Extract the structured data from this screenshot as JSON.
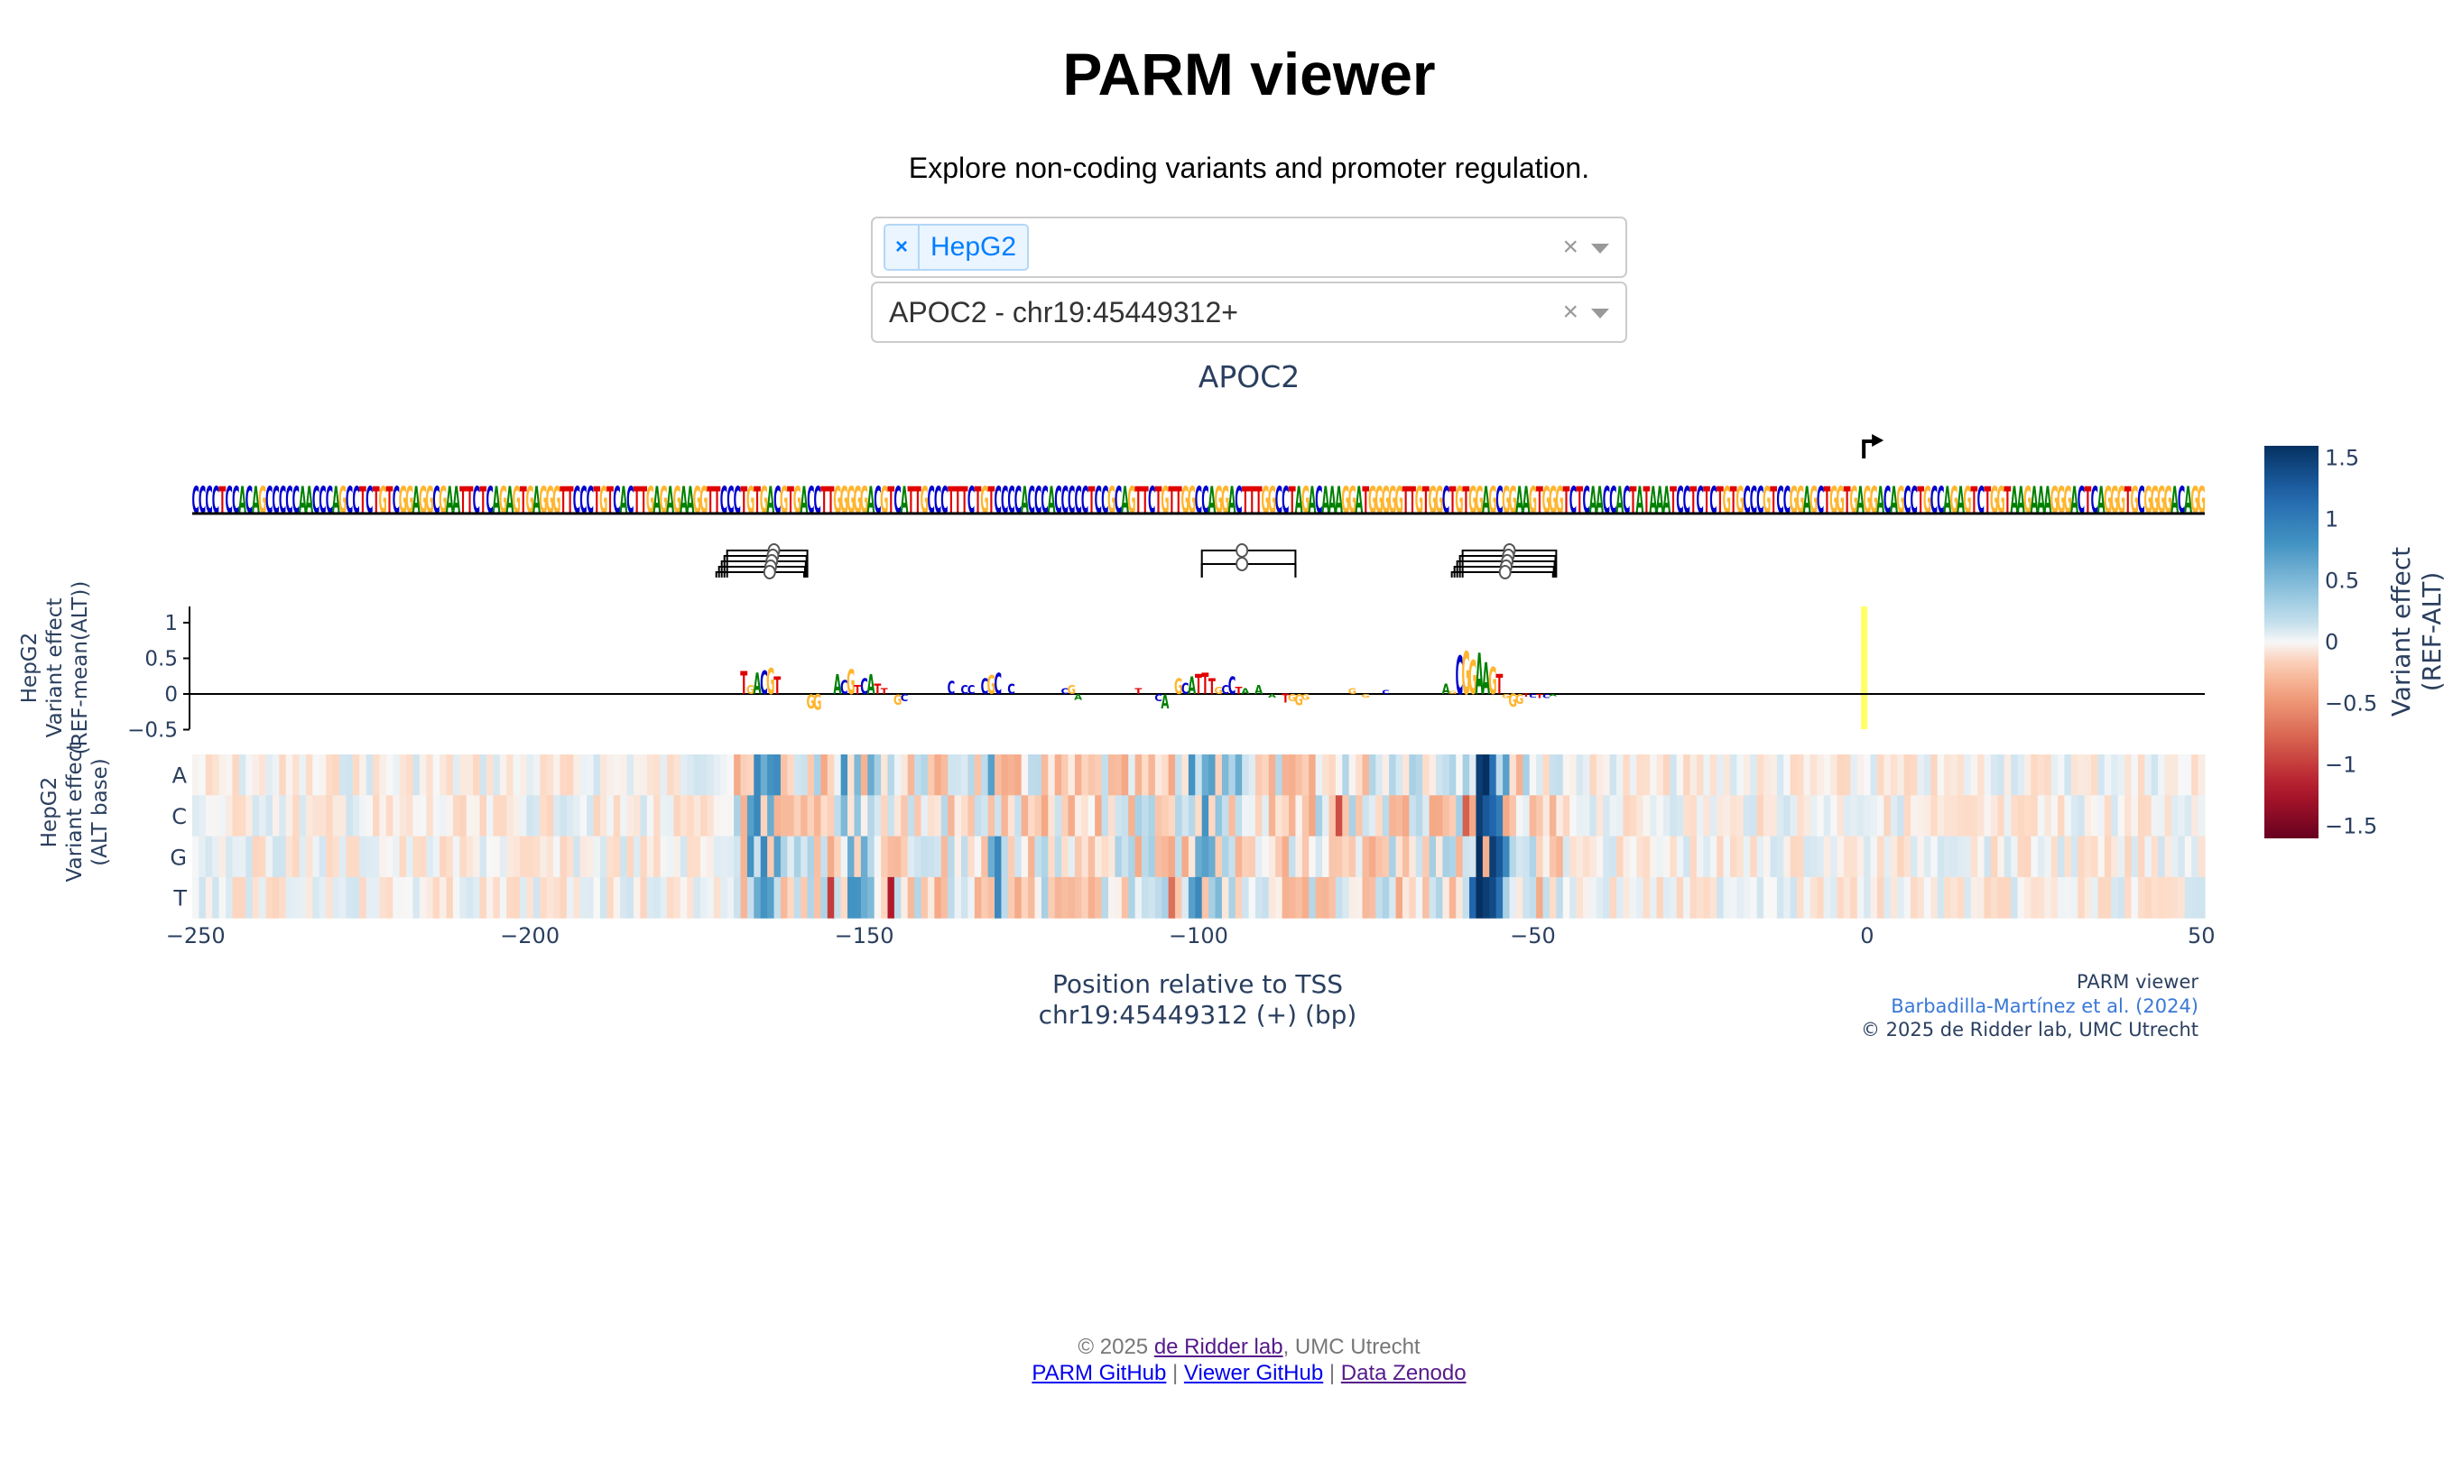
{
  "page": {
    "title": "PARM viewer",
    "subtitle": "Explore non-coding variants and promoter regulation."
  },
  "controls": {
    "cell_type_select": {
      "selected": [
        "HepG2"
      ],
      "chip_remove_icon": "×",
      "clear_icon": "×"
    },
    "gene_select": {
      "value": "APOC2 - chr19:45449312+",
      "clear_icon": "×"
    }
  },
  "plot": {
    "title": "APOC2",
    "colors": {
      "A": "#008000",
      "C": "#0000cc",
      "G": "#ffb52e",
      "T": "#e00000",
      "axis_text": "#2a3f5f",
      "tss_highlight": "#ffff66"
    },
    "credits": {
      "line1": "PARM viewer",
      "line2": "Barbadilla-Martínez et al. (2024)",
      "line3": "© 2025 de Ridder lab, UMC Utrecht"
    }
  },
  "chart_data": [
    {
      "type": "sequence-logo",
      "name": "reference sequence",
      "x_range": [
        -250,
        50
      ],
      "sequence": "CCCCTCCACAGCCCCCAACCCAGCCTCTGTCGGAGGCGAATTCTCAGAGTGAGGGTTCCCTGTCACTTGAGAGAAGGTTCCCTGTGACGTGACCTTGGGGGACGTCATTGCCCTTTCTGTCCCCACCCACCCCCTCCGCAGTTCTGTTGGCCAGGACTTTGGCCTAGACAAAGGATGGGGGTTGTGGCTGTGGAGCGGAAGTGGGTCTCAACCACTATAAATCCTCTCTGTGCCCGTCCGGAGCTGGTGAGGACAGCCTGCCAGAGTCTGGTAAGAAAGGGACTCAGGGTGCGGGGACAGG",
      "tss_marker_position": 0
    },
    {
      "type": "motif-annotations",
      "groups": [
        {
          "center": -163,
          "start": -170,
          "end": -158,
          "count": 5
        },
        {
          "center": -93,
          "start": -99,
          "end": -85,
          "count": 2
        },
        {
          "center": -53,
          "start": -60,
          "end": -46,
          "count": 5
        }
      ]
    },
    {
      "type": "logo-bar",
      "title": "",
      "ylabel": "HepG2\nVariant effect\n(REF-mean(ALT))",
      "yticks": [
        1,
        0.5,
        0,
        -0.5
      ],
      "ylim": [
        -0.55,
        1.2
      ],
      "highlight_x": 0,
      "points": [
        {
          "x": -168,
          "base": "T",
          "v": 0.32
        },
        {
          "x": -167,
          "base": "G",
          "v": 0.12
        },
        {
          "x": -166,
          "base": "A",
          "v": 0.3
        },
        {
          "x": -165,
          "base": "C",
          "v": 0.33
        },
        {
          "x": -164,
          "base": "G",
          "v": 0.36
        },
        {
          "x": -163,
          "base": "T",
          "v": 0.25
        },
        {
          "x": -158,
          "base": "G",
          "v": -0.2
        },
        {
          "x": -157,
          "base": "G",
          "v": -0.22
        },
        {
          "x": -154,
          "base": "A",
          "v": 0.28
        },
        {
          "x": -153,
          "base": "C",
          "v": 0.2
        },
        {
          "x": -152,
          "base": "G",
          "v": 0.35
        },
        {
          "x": -151,
          "base": "T",
          "v": 0.12
        },
        {
          "x": -150,
          "base": "C",
          "v": 0.22
        },
        {
          "x": -149,
          "base": "A",
          "v": 0.28
        },
        {
          "x": -148,
          "base": "T",
          "v": 0.15
        },
        {
          "x": -147,
          "base": "T",
          "v": 0.08
        },
        {
          "x": -145,
          "base": "G",
          "v": -0.15
        },
        {
          "x": -144,
          "base": "C",
          "v": -0.1
        },
        {
          "x": -137,
          "base": "C",
          "v": 0.18
        },
        {
          "x": -135,
          "base": "C",
          "v": 0.12
        },
        {
          "x": -134,
          "base": "C",
          "v": 0.12
        },
        {
          "x": -132,
          "base": "C",
          "v": 0.22
        },
        {
          "x": -131,
          "base": "G",
          "v": 0.26
        },
        {
          "x": -130,
          "base": "C",
          "v": 0.3
        },
        {
          "x": -128,
          "base": "C",
          "v": 0.15
        },
        {
          "x": -120,
          "base": "C",
          "v": 0.08
        },
        {
          "x": -119,
          "base": "G",
          "v": 0.12
        },
        {
          "x": -118,
          "base": "A",
          "v": -0.08
        },
        {
          "x": -109,
          "base": "T",
          "v": 0.08
        },
        {
          "x": -106,
          "base": "C",
          "v": -0.1
        },
        {
          "x": -105,
          "base": "A",
          "v": -0.2
        },
        {
          "x": -103,
          "base": "G",
          "v": 0.22
        },
        {
          "x": -102,
          "base": "C",
          "v": 0.16
        },
        {
          "x": -101,
          "base": "A",
          "v": 0.25
        },
        {
          "x": -100,
          "base": "T",
          "v": 0.28
        },
        {
          "x": -99,
          "base": "T",
          "v": 0.3
        },
        {
          "x": -98,
          "base": "T",
          "v": 0.22
        },
        {
          "x": -97,
          "base": "G",
          "v": 0.1
        },
        {
          "x": -96,
          "base": "C",
          "v": 0.12
        },
        {
          "x": -95,
          "base": "C",
          "v": 0.25
        },
        {
          "x": -94,
          "base": "T",
          "v": 0.1
        },
        {
          "x": -93,
          "base": "A",
          "v": 0.08
        },
        {
          "x": -91,
          "base": "A",
          "v": 0.12
        },
        {
          "x": -89,
          "base": "A",
          "v": -0.05
        },
        {
          "x": -87,
          "base": "T",
          "v": -0.12
        },
        {
          "x": -86,
          "base": "G",
          "v": -0.1
        },
        {
          "x": -85,
          "base": "G",
          "v": -0.16
        },
        {
          "x": -84,
          "base": "G",
          "v": -0.08
        },
        {
          "x": -77,
          "base": "G",
          "v": 0.08
        },
        {
          "x": -75,
          "base": "G",
          "v": -0.05
        },
        {
          "x": -72,
          "base": "C",
          "v": 0.06
        },
        {
          "x": -63,
          "base": "A",
          "v": 0.15
        },
        {
          "x": -62,
          "base": "G",
          "v": 0.04
        },
        {
          "x": -61,
          "base": "C",
          "v": 0.55
        },
        {
          "x": -60,
          "base": "G",
          "v": 0.6
        },
        {
          "x": -59,
          "base": "G",
          "v": 0.48
        },
        {
          "x": -58,
          "base": "A",
          "v": 0.58
        },
        {
          "x": -57,
          "base": "A",
          "v": 0.45
        },
        {
          "x": -56,
          "base": "G",
          "v": 0.38
        },
        {
          "x": -55,
          "base": "T",
          "v": 0.28
        },
        {
          "x": -54,
          "base": "G",
          "v": -0.06
        },
        {
          "x": -53,
          "base": "G",
          "v": -0.18
        },
        {
          "x": -52,
          "base": "G",
          "v": -0.14
        },
        {
          "x": -51,
          "base": "T",
          "v": -0.04
        },
        {
          "x": -50,
          "base": "C",
          "v": -0.05
        },
        {
          "x": -49,
          "base": "T",
          "v": -0.06
        },
        {
          "x": -48,
          "base": "C",
          "v": -0.06
        },
        {
          "x": -47,
          "base": "A",
          "v": -0.03
        }
      ]
    },
    {
      "type": "heatmap",
      "ylabel": "HepG2\nVariant effect\n(ALT base)",
      "rows": [
        "A",
        "C",
        "G",
        "T"
      ],
      "xlabel": "Position relative to TSS\nchr19:45449312 (+) (bp)",
      "xticks": [
        -250,
        -200,
        -150,
        -100,
        -50,
        0,
        50
      ],
      "x_range": [
        -250,
        50
      ],
      "colorscale": "RdBu",
      "zlim": [
        -1.6,
        1.6
      ],
      "strong_cells": [
        {
          "x": -166,
          "row": "A",
          "z": 0.9
        },
        {
          "x": -165,
          "row": "A",
          "z": 0.6
        },
        {
          "x": -164,
          "row": "A",
          "z": 0.8
        },
        {
          "x": -163,
          "row": "A",
          "z": 0.85
        },
        {
          "x": -167,
          "row": "C",
          "z": 0.7
        },
        {
          "x": -166,
          "row": "C",
          "z": 0.9
        },
        {
          "x": -164,
          "row": "C",
          "z": 0.6
        },
        {
          "x": -167,
          "row": "G",
          "z": 0.8
        },
        {
          "x": -165,
          "row": "G",
          "z": 0.9
        },
        {
          "x": -163,
          "row": "G",
          "z": 0.7
        },
        {
          "x": -166,
          "row": "T",
          "z": 0.6
        },
        {
          "x": -165,
          "row": "T",
          "z": 0.8
        },
        {
          "x": -164,
          "row": "T",
          "z": 0.7
        },
        {
          "x": -153,
          "row": "A",
          "z": 0.8
        },
        {
          "x": -151,
          "row": "A",
          "z": 0.5
        },
        {
          "x": -149,
          "row": "A",
          "z": 0.6
        },
        {
          "x": -153,
          "row": "C",
          "z": 0.5
        },
        {
          "x": -151,
          "row": "C",
          "z": 0.4
        },
        {
          "x": -152,
          "row": "G",
          "z": 0.6
        },
        {
          "x": -150,
          "row": "G",
          "z": 0.6
        },
        {
          "x": -152,
          "row": "T",
          "z": 0.8
        },
        {
          "x": -151,
          "row": "T",
          "z": 0.8
        },
        {
          "x": -150,
          "row": "T",
          "z": 0.6
        },
        {
          "x": -149,
          "row": "T",
          "z": 0.5
        },
        {
          "x": -155,
          "row": "T",
          "z": -1.0
        },
        {
          "x": -146,
          "row": "T",
          "z": -1.2
        },
        {
          "x": -131,
          "row": "A",
          "z": 0.7
        },
        {
          "x": -130,
          "row": "G",
          "z": 0.9
        },
        {
          "x": -131,
          "row": "G",
          "z": 0.6
        },
        {
          "x": -130,
          "row": "T",
          "z": 0.9
        },
        {
          "x": -101,
          "row": "A",
          "z": 0.8
        },
        {
          "x": -99,
          "row": "A",
          "z": 0.6
        },
        {
          "x": -98,
          "row": "A",
          "z": 0.7
        },
        {
          "x": -96,
          "row": "A",
          "z": 0.5
        },
        {
          "x": -94,
          "row": "A",
          "z": 0.6
        },
        {
          "x": -99,
          "row": "C",
          "z": 0.8
        },
        {
          "x": -97,
          "row": "C",
          "z": 0.4
        },
        {
          "x": -100,
          "row": "G",
          "z": 0.6
        },
        {
          "x": -99,
          "row": "G",
          "z": 0.7
        },
        {
          "x": -98,
          "row": "G",
          "z": 0.6
        },
        {
          "x": -101,
          "row": "T",
          "z": 0.7
        },
        {
          "x": -100,
          "row": "T",
          "z": 0.9
        },
        {
          "x": -97,
          "row": "T",
          "z": 0.5
        },
        {
          "x": -104,
          "row": "T",
          "z": -0.7
        },
        {
          "x": -79,
          "row": "C",
          "z": -0.9
        },
        {
          "x": -58,
          "row": "A",
          "z": 1.5
        },
        {
          "x": -57,
          "row": "A",
          "z": 1.6
        },
        {
          "x": -56,
          "row": "A",
          "z": 1.1
        },
        {
          "x": -54,
          "row": "A",
          "z": 0.7
        },
        {
          "x": -58,
          "row": "C",
          "z": 1.5
        },
        {
          "x": -57,
          "row": "C",
          "z": 1.3
        },
        {
          "x": -56,
          "row": "C",
          "z": 1.2
        },
        {
          "x": -55,
          "row": "C",
          "z": 1.0
        },
        {
          "x": -58,
          "row": "G",
          "z": 1.6
        },
        {
          "x": -56,
          "row": "G",
          "z": 1.5
        },
        {
          "x": -55,
          "row": "G",
          "z": 1.3
        },
        {
          "x": -54,
          "row": "G",
          "z": 0.9
        },
        {
          "x": -59,
          "row": "T",
          "z": 1.2
        },
        {
          "x": -58,
          "row": "T",
          "z": 1.6
        },
        {
          "x": -57,
          "row": "T",
          "z": 1.5
        },
        {
          "x": -56,
          "row": "T",
          "z": 1.4
        },
        {
          "x": -55,
          "row": "T",
          "z": 1.1
        },
        {
          "x": -60,
          "row": "C",
          "z": -0.8
        }
      ]
    },
    {
      "type": "colorbar",
      "title": "Variant effect\n(REF-ALT)",
      "ticks": [
        1.5,
        1,
        0.5,
        0,
        -0.5,
        -1,
        -1.5
      ],
      "range": [
        -1.6,
        1.6
      ]
    }
  ],
  "footer": {
    "copyright_prefix": "© 2025 ",
    "lab_link": "de Ridder lab",
    "copyright_suffix": ", UMC Utrecht",
    "links": [
      "PARM GitHub",
      "Viewer GitHub",
      "Data Zenodo"
    ],
    "separator": " | "
  }
}
